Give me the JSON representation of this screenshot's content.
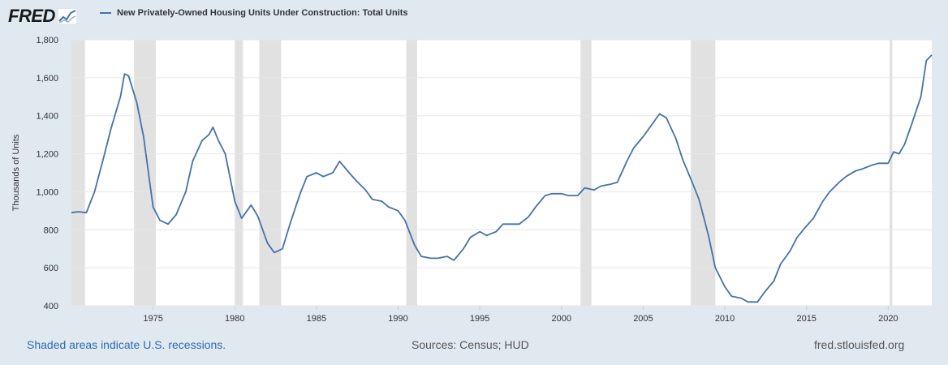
{
  "logo": {
    "text": "FRED",
    "icon": "fred-line-chart-icon"
  },
  "footer": {
    "recessions_note": "Shaded areas indicate U.S. recessions.",
    "sources": "Sources: Census; HUD",
    "site": "fred.stlouisfed.org"
  },
  "colors": {
    "line": "#4572a7",
    "recession": "#e1e1e1",
    "grid": "#e6e6e6",
    "background": "#e1e9f0",
    "plot": "#ffffff"
  },
  "chart_data": {
    "type": "line",
    "title": "",
    "xlabel": "",
    "ylabel": "Thousands of Units",
    "ylim": [
      400,
      1800
    ],
    "xlim": [
      "1970-01",
      "2022-09"
    ],
    "grid": true,
    "y_ticks": [
      400,
      600,
      800,
      1000,
      1200,
      1400,
      1600,
      1800
    ],
    "y_tick_labels": [
      "400",
      "600",
      "800",
      "1,000",
      "1,200",
      "1,400",
      "1,600",
      "1,800"
    ],
    "x_ticks": [
      "1975",
      "1980",
      "1985",
      "1990",
      "1995",
      "2000",
      "2005",
      "2010",
      "2015",
      "2020"
    ],
    "legend": "top-left",
    "recessions": [
      [
        "1969-12",
        "1970-11"
      ],
      [
        "1973-11",
        "1975-03"
      ],
      [
        "1980-01",
        "1980-07"
      ],
      [
        "1981-07",
        "1982-11"
      ],
      [
        "1990-07",
        "1991-03"
      ],
      [
        "2001-03",
        "2001-11"
      ],
      [
        "2007-12",
        "2009-06"
      ],
      [
        "2020-02",
        "2020-04"
      ]
    ],
    "series": [
      {
        "name": "New Privately-Owned Housing Units Under Construction: Total Units",
        "x": [
          "1970-01",
          "1970-06",
          "1970-12",
          "1971-06",
          "1972-01",
          "1972-06",
          "1973-01",
          "1973-04",
          "1973-07",
          "1974-01",
          "1974-06",
          "1975-01",
          "1975-06",
          "1975-12",
          "1976-06",
          "1977-01",
          "1977-06",
          "1978-01",
          "1978-06",
          "1978-09",
          "1979-01",
          "1979-06",
          "1980-01",
          "1980-06",
          "1981-01",
          "1981-06",
          "1982-01",
          "1982-06",
          "1982-12",
          "1983-06",
          "1984-01",
          "1984-06",
          "1985-01",
          "1985-06",
          "1986-01",
          "1986-06",
          "1987-01",
          "1987-06",
          "1988-01",
          "1988-06",
          "1989-01",
          "1989-06",
          "1990-01",
          "1990-06",
          "1991-01",
          "1991-06",
          "1992-01",
          "1992-06",
          "1993-01",
          "1993-06",
          "1994-01",
          "1994-06",
          "1995-01",
          "1995-06",
          "1996-01",
          "1996-06",
          "1997-01",
          "1997-06",
          "1998-01",
          "1998-06",
          "1999-01",
          "1999-06",
          "2000-01",
          "2000-06",
          "2001-01",
          "2001-06",
          "2002-01",
          "2002-06",
          "2003-01",
          "2003-06",
          "2004-01",
          "2004-06",
          "2005-01",
          "2005-06",
          "2006-01",
          "2006-06",
          "2007-01",
          "2007-06",
          "2008-01",
          "2008-06",
          "2009-01",
          "2009-06",
          "2010-01",
          "2010-06",
          "2011-01",
          "2011-06",
          "2012-01",
          "2012-06",
          "2013-01",
          "2013-06",
          "2014-01",
          "2014-06",
          "2015-01",
          "2015-06",
          "2016-01",
          "2016-06",
          "2017-01",
          "2017-06",
          "2018-01",
          "2018-06",
          "2019-01",
          "2019-06",
          "2020-01",
          "2020-05",
          "2020-09",
          "2021-01",
          "2021-06",
          "2022-01",
          "2022-05",
          "2022-09"
        ],
        "y": [
          890,
          895,
          890,
          1000,
          1190,
          1330,
          1500,
          1620,
          1610,
          1470,
          1290,
          920,
          850,
          830,
          880,
          1000,
          1160,
          1270,
          1300,
          1340,
          1270,
          1200,
          950,
          860,
          930,
          870,
          730,
          680,
          700,
          840,
          990,
          1080,
          1100,
          1080,
          1100,
          1160,
          1100,
          1060,
          1010,
          960,
          950,
          920,
          900,
          850,
          720,
          660,
          650,
          650,
          660,
          640,
          700,
          760,
          790,
          770,
          790,
          830,
          830,
          830,
          870,
          920,
          980,
          990,
          990,
          980,
          980,
          1020,
          1010,
          1030,
          1040,
          1050,
          1160,
          1230,
          1290,
          1340,
          1410,
          1390,
          1280,
          1170,
          1050,
          960,
          770,
          600,
          500,
          450,
          440,
          420,
          420,
          470,
          530,
          620,
          690,
          760,
          820,
          860,
          950,
          1000,
          1050,
          1080,
          1110,
          1120,
          1140,
          1150,
          1150,
          1210,
          1200,
          1250,
          1350,
          1500,
          1690,
          1720
        ]
      }
    ]
  }
}
